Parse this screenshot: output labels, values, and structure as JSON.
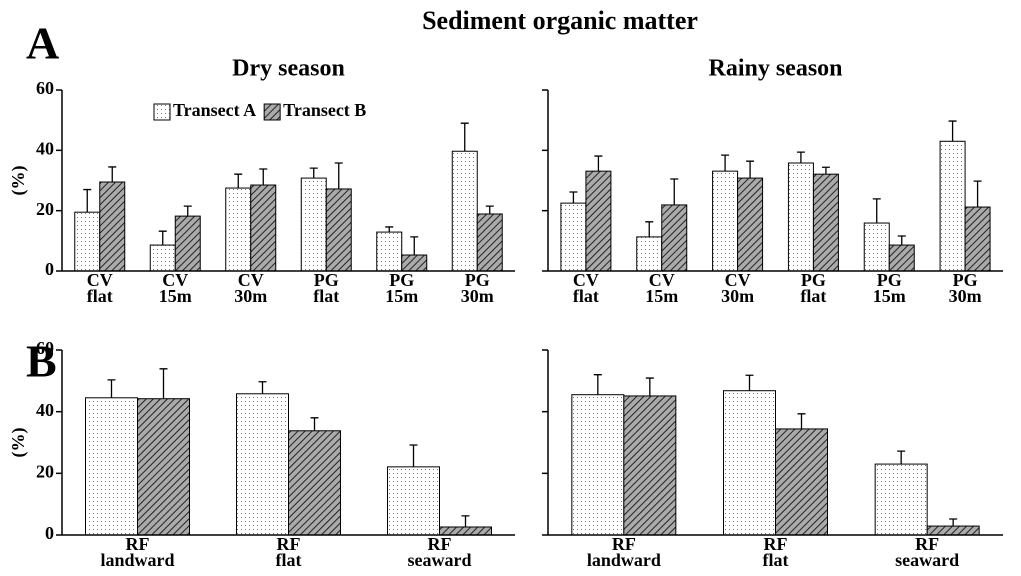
{
  "title": "Sediment organic matter",
  "panel_labels": [
    "A",
    "B"
  ],
  "chart_data": [
    {
      "type": "bar",
      "title": "Dry season",
      "ylabel": "(%)",
      "legend": "top-left",
      "show_ytick_labels": true,
      "categories": [
        [
          "CV",
          "flat"
        ],
        [
          "CV",
          "15m"
        ],
        [
          "CV",
          "30m"
        ],
        [
          "PG",
          "flat"
        ],
        [
          "PG",
          "15m"
        ],
        [
          "PG",
          "30m"
        ]
      ],
      "series": [
        {
          "name": "Transect A",
          "pattern": "dots",
          "values": [
            19.5,
            8.6,
            27.5,
            30.8,
            12.9,
            39.7
          ],
          "errors": [
            7.5,
            4.6,
            4.6,
            3.3,
            1.7,
            9.3
          ]
        },
        {
          "name": "Transect B",
          "pattern": "hatch",
          "values": [
            29.5,
            18.2,
            28.5,
            27.2,
            5.3,
            18.9
          ],
          "errors": [
            5,
            3.3,
            5.3,
            8.6,
            6,
            2.6
          ]
        }
      ],
      "ylim": [
        0,
        60
      ],
      "yticks": [
        0,
        20,
        40,
        60
      ]
    },
    {
      "type": "bar",
      "title": "Rainy season",
      "show_ytick_labels": false,
      "categories": [
        [
          "CV",
          "flat"
        ],
        [
          "CV",
          "15m"
        ],
        [
          "CV",
          "30m"
        ],
        [
          "PG",
          "flat"
        ],
        [
          "PG",
          "15m"
        ],
        [
          "PG",
          "30m"
        ]
      ],
      "series": [
        {
          "pattern": "dots",
          "values": [
            22.5,
            11.3,
            33.1,
            35.8,
            15.9,
            43
          ],
          "errors": [
            3.7,
            5,
            5.3,
            3.6,
            8,
            6.7
          ]
        },
        {
          "pattern": "hatch",
          "values": [
            33.1,
            21.9,
            30.8,
            32.1,
            8.6,
            21.2
          ],
          "errors": [
            5,
            8.6,
            5.6,
            2.3,
            3,
            8.6
          ]
        }
      ],
      "ylim": [
        0,
        60
      ],
      "yticks": [
        0,
        20,
        40,
        60
      ]
    },
    {
      "type": "bar",
      "ylabel": "(%)",
      "show_ytick_labels": true,
      "categories": [
        [
          "RF",
          "landward"
        ],
        [
          "RF",
          "flat"
        ],
        [
          "RF",
          "seaward"
        ]
      ],
      "series": [
        {
          "pattern": "dots",
          "values": [
            44.5,
            45.8,
            22.1
          ],
          "errors": [
            5.8,
            3.9,
            7.1
          ]
        },
        {
          "pattern": "hatch",
          "values": [
            44.2,
            33.8,
            2.6
          ],
          "errors": [
            9.7,
            4.2,
            3.6
          ]
        }
      ],
      "ylim": [
        0,
        60
      ],
      "yticks": [
        0,
        20,
        40,
        60
      ]
    },
    {
      "type": "bar",
      "show_ytick_labels": false,
      "categories": [
        [
          "RF",
          "landward"
        ],
        [
          "RF",
          "flat"
        ],
        [
          "RF",
          "seaward"
        ]
      ],
      "series": [
        {
          "pattern": "dots",
          "values": [
            45.5,
            46.8,
            23
          ],
          "errors": [
            6.5,
            5,
            4.2
          ]
        },
        {
          "pattern": "hatch",
          "values": [
            45.1,
            34.4,
            2.9
          ],
          "errors": [
            5.8,
            4.9,
            2.3
          ]
        }
      ],
      "ylim": [
        0,
        60
      ],
      "yticks": [
        0,
        20,
        40,
        60
      ]
    }
  ]
}
